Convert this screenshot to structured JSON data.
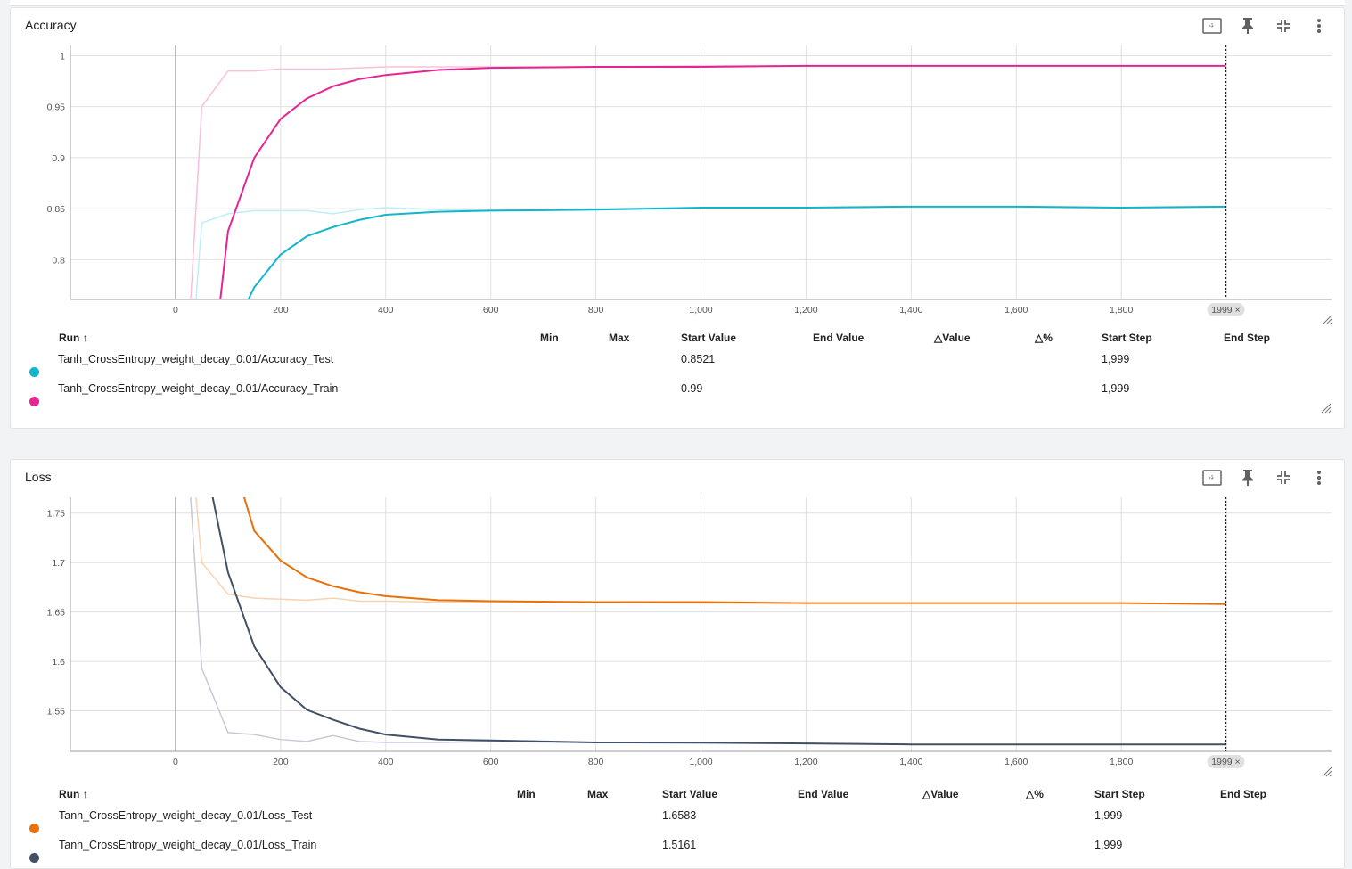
{
  "cards": [
    {
      "title": "Accuracy",
      "table": {
        "columns": [
          "Run ↑",
          "Min",
          "Max",
          "Start Value",
          "End Value",
          "△Value",
          "△%",
          "Start Step",
          "End Step"
        ],
        "rows": [
          {
            "run": "Tanh_CrossEntropy_weight_decay_0.01/Accuracy_Test",
            "min": "",
            "max": "",
            "start_value": "0.8521",
            "end_value": "",
            "delta_value": "",
            "delta_pct": "",
            "start_step": "1,999",
            "end_step": "",
            "color": "#12b5cb"
          },
          {
            "run": "Tanh_CrossEntropy_weight_decay_0.01/Accuracy_Train",
            "min": "",
            "max": "",
            "start_value": "0.99",
            "end_value": "",
            "delta_value": "",
            "delta_pct": "",
            "start_step": "1,999",
            "end_step": "",
            "color": "#e52592"
          }
        ]
      },
      "cursor_label": "1999 ×"
    },
    {
      "title": "Loss",
      "table": {
        "columns": [
          "Run ↑",
          "Min",
          "Max",
          "Start Value",
          "End Value",
          "△Value",
          "△%",
          "Start Step",
          "End Step"
        ],
        "rows": [
          {
            "run": "Tanh_CrossEntropy_weight_decay_0.01/Loss_Test",
            "min": "",
            "max": "",
            "start_value": "1.6583",
            "end_value": "",
            "delta_value": "",
            "delta_pct": "",
            "start_step": "1,999",
            "end_step": "",
            "color": "#e8710a"
          },
          {
            "run": "Tanh_CrossEntropy_weight_decay_0.01/Loss_Train",
            "min": "",
            "max": "",
            "start_value": "1.5161",
            "end_value": "",
            "delta_value": "",
            "delta_pct": "",
            "start_step": "1,999",
            "end_step": "",
            "color": "#425066"
          }
        ]
      },
      "cursor_label": "1999 ×"
    }
  ],
  "toolbar_icons": [
    "fit-to-data-icon",
    "pin-icon",
    "collapse-icon",
    "more-vert-icon"
  ],
  "chart_data": [
    {
      "type": "line",
      "title": "Accuracy",
      "xlim": [
        -200,
        2200
      ],
      "ylim": [
        0.761,
        1.01
      ],
      "x_ticks": [
        "0",
        "200",
        "400",
        "600",
        "800",
        "1,000",
        "1,200",
        "1,400",
        "1,600",
        "1,800"
      ],
      "y_ticks": [
        "0.8",
        "0.85",
        "0.9",
        "0.95",
        "1"
      ],
      "cursor_step": 1999,
      "series": [
        {
          "name": "Tanh_CrossEntropy_weight_decay_0.01/Accuracy_Train",
          "color": "#e52592",
          "raw_color": "#f7c0dc",
          "x": [
            0,
            50,
            100,
            150,
            200,
            250,
            300,
            350,
            400,
            500,
            600,
            800,
            1000,
            1200,
            1400,
            1600,
            1800,
            1999
          ],
          "raw": [
            0.5,
            0.95,
            0.985,
            0.985,
            0.987,
            0.987,
            0.987,
            0.988,
            0.989,
            0.989,
            0.989,
            0.989,
            0.99,
            0.99,
            0.99,
            0.99,
            0.99,
            0.99
          ],
          "smoothed": [
            0.3,
            0.6,
            0.828,
            0.9,
            0.938,
            0.958,
            0.97,
            0.977,
            0.981,
            0.986,
            0.988,
            0.989,
            0.989,
            0.99,
            0.99,
            0.99,
            0.99,
            0.99
          ]
        },
        {
          "name": "Tanh_CrossEntropy_weight_decay_0.01/Accuracy_Test",
          "color": "#12b5cb",
          "raw_color": "#bdeef5",
          "x": [
            0,
            50,
            100,
            150,
            200,
            250,
            300,
            350,
            400,
            500,
            600,
            800,
            1000,
            1200,
            1400,
            1600,
            1800,
            1999
          ],
          "raw": [
            0.5,
            0.836,
            0.845,
            0.848,
            0.848,
            0.848,
            0.845,
            0.849,
            0.851,
            0.849,
            0.849,
            0.85,
            0.851,
            0.851,
            0.852,
            0.852,
            0.851,
            0.852
          ],
          "smoothed": [
            0.3,
            0.6,
            0.72,
            0.773,
            0.805,
            0.823,
            0.832,
            0.839,
            0.844,
            0.847,
            0.848,
            0.849,
            0.851,
            0.851,
            0.852,
            0.852,
            0.851,
            0.852
          ]
        }
      ]
    },
    {
      "type": "line",
      "title": "Loss",
      "xlim": [
        -200,
        2200
      ],
      "ylim": [
        1.509,
        1.766
      ],
      "x_ticks": [
        "0",
        "200",
        "400",
        "600",
        "800",
        "1,000",
        "1,200",
        "1,400",
        "1,600",
        "1,800"
      ],
      "y_ticks": [
        "1.55",
        "1.6",
        "1.65",
        "1.7",
        "1.75"
      ],
      "cursor_step": 1999,
      "series": [
        {
          "name": "Tanh_CrossEntropy_weight_decay_0.01/Loss_Test",
          "color": "#e8710a",
          "raw_color": "#f9d3b1",
          "x": [
            0,
            50,
            100,
            150,
            200,
            250,
            300,
            350,
            400,
            500,
            600,
            800,
            1000,
            1200,
            1400,
            1600,
            1800,
            1999
          ],
          "raw": [
            2.0,
            1.7,
            1.668,
            1.664,
            1.663,
            1.662,
            1.664,
            1.661,
            1.661,
            1.66,
            1.66,
            1.66,
            1.659,
            1.659,
            1.659,
            1.659,
            1.659,
            1.658
          ],
          "smoothed": [
            2.2,
            1.95,
            1.82,
            1.732,
            1.702,
            1.685,
            1.676,
            1.67,
            1.666,
            1.662,
            1.661,
            1.66,
            1.66,
            1.659,
            1.659,
            1.659,
            1.659,
            1.658
          ]
        },
        {
          "name": "Tanh_CrossEntropy_weight_decay_0.01/Loss_Train",
          "color": "#425066",
          "raw_color": "#c8cad6",
          "x": [
            0,
            50,
            100,
            150,
            200,
            250,
            300,
            350,
            400,
            500,
            600,
            800,
            1000,
            1200,
            1400,
            1600,
            1800,
            1999
          ],
          "raw": [
            2.0,
            1.593,
            1.528,
            1.526,
            1.521,
            1.519,
            1.525,
            1.519,
            1.518,
            1.518,
            1.519,
            1.518,
            1.517,
            1.517,
            1.516,
            1.516,
            1.516,
            1.516
          ],
          "smoothed": [
            2.2,
            1.82,
            1.69,
            1.615,
            1.574,
            1.551,
            1.541,
            1.532,
            1.526,
            1.521,
            1.52,
            1.518,
            1.518,
            1.517,
            1.516,
            1.516,
            1.516,
            1.516
          ]
        }
      ]
    }
  ]
}
